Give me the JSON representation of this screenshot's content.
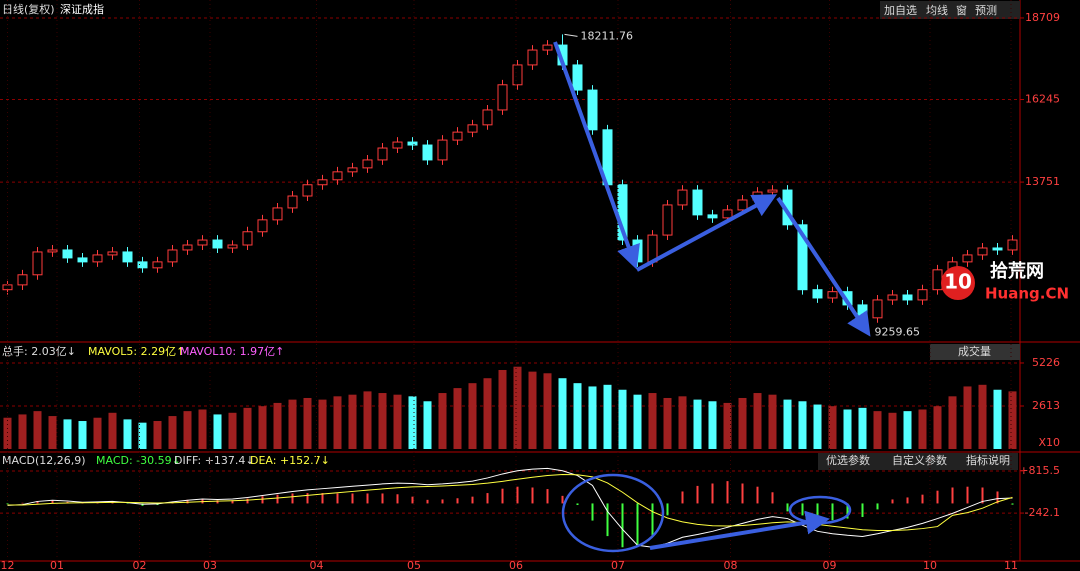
{
  "toolbar": [
    "加自选",
    "均线",
    "窗",
    "预测"
  ],
  "watermark": {
    "number": "10",
    "name": "拾荒网",
    "domain": "Huang.CN"
  },
  "chart_data": [
    {
      "type": "candlestick",
      "subtitle": "日线(复权)",
      "title": "深证成指",
      "up_color": "#ff3c3c",
      "down_color": "#54ffff",
      "open": [
        10500,
        10645,
        10950,
        11640,
        11700,
        11460,
        11340,
        11550,
        11640,
        11340,
        11160,
        11340,
        11700,
        11850,
        12000,
        11760,
        11850,
        12250,
        12610,
        12970,
        13330,
        13670,
        13820,
        14060,
        14180,
        14420,
        14780,
        14960,
        14870,
        14420,
        15020,
        15260,
        15480,
        15930,
        16690,
        17290,
        17740,
        17890,
        17290,
        16530,
        15330,
        13670,
        12000,
        11340,
        12150,
        13060,
        13510,
        12760,
        12670,
        12910,
        13210,
        13450,
        13510,
        12460,
        10500,
        10250,
        10440,
        10040,
        9650,
        10190,
        10340,
        10190,
        10500,
        11100,
        11340,
        11550,
        11760,
        11700
      ],
      "high": [
        10800,
        11100,
        11790,
        11850,
        11850,
        11610,
        11700,
        11790,
        11790,
        11490,
        11490,
        11850,
        12000,
        12150,
        12150,
        11990,
        12400,
        12760,
        13120,
        13480,
        13820,
        13970,
        14210,
        14330,
        14570,
        14930,
        15110,
        15110,
        15020,
        15170,
        15410,
        15630,
        16080,
        16840,
        17440,
        17890,
        18040,
        18211.76,
        17440,
        16680,
        15480,
        13820,
        12150,
        12300,
        13210,
        13660,
        13660,
        12910,
        13060,
        13360,
        13600,
        13660,
        13660,
        12610,
        10650,
        10590,
        10590,
        10190,
        10340,
        10490,
        10490,
        10650,
        11250,
        11490,
        11700,
        11910,
        11910,
        12150
      ],
      "low": [
        10350,
        10490,
        10800,
        11490,
        11310,
        11190,
        11190,
        11400,
        11190,
        11010,
        11010,
        11190,
        11550,
        11700,
        11610,
        11610,
        11700,
        12100,
        12460,
        12820,
        13180,
        13520,
        13670,
        13910,
        14030,
        14270,
        14630,
        14720,
        14270,
        14270,
        14870,
        15110,
        15330,
        15780,
        16540,
        17140,
        17590,
        17140,
        16380,
        15180,
        13520,
        11850,
        11190,
        11190,
        12000,
        12910,
        12610,
        12520,
        12520,
        12760,
        13060,
        13300,
        12310,
        10350,
        10100,
        10100,
        9890,
        9259.65,
        9500,
        10040,
        10040,
        10040,
        10350,
        10950,
        11190,
        11400,
        11550,
        11550
      ],
      "close": [
        10645,
        10950,
        11640,
        11700,
        11460,
        11340,
        11550,
        11640,
        11340,
        11160,
        11340,
        11700,
        11850,
        12000,
        11760,
        11850,
        12250,
        12610,
        12970,
        13330,
        13670,
        13820,
        14060,
        14180,
        14420,
        14780,
        14960,
        14870,
        14420,
        15020,
        15260,
        15480,
        15930,
        16690,
        17290,
        17740,
        17890,
        17290,
        16530,
        15330,
        13670,
        12000,
        11340,
        12150,
        13060,
        13510,
        12760,
        12670,
        12910,
        13210,
        13450,
        13510,
        12460,
        10500,
        10250,
        10440,
        10040,
        9650,
        10190,
        10340,
        10190,
        10500,
        11100,
        11340,
        11550,
        11760,
        11700,
        12000
      ],
      "xlim": [
        -0.5,
        67.5
      ],
      "ylim": [
        8980,
        19010
      ],
      "yticks": [
        18709,
        16245,
        13751
      ],
      "grid": true
    },
    {
      "type": "bar",
      "title": "成交量",
      "stats": [
        "总手: 2.03亿↓",
        "MAVOL5: 2.29亿↑",
        "MAVOL10: 1.97亿↑"
      ],
      "unit": "X10",
      "values": [
        1900,
        2100,
        2300,
        2000,
        1800,
        1700,
        1900,
        2200,
        1800,
        1600,
        1700,
        2000,
        2300,
        2400,
        2100,
        2200,
        2500,
        2600,
        2800,
        3000,
        3100,
        3000,
        3200,
        3300,
        3500,
        3400,
        3300,
        3200,
        2900,
        3400,
        3700,
        4000,
        4300,
        4800,
        5000,
        4700,
        4600,
        4300,
        4000,
        3800,
        3900,
        3600,
        3300,
        3400,
        3100,
        3200,
        3000,
        2900,
        2800,
        3100,
        3400,
        3300,
        3000,
        2900,
        2700,
        2600,
        2400,
        2500,
        2300,
        2200,
        2300,
        2400,
        2600,
        3200,
        3800,
        3900,
        3600,
        3500
      ],
      "xlim": [
        -0.5,
        67.5
      ],
      "ylim": [
        0,
        5650
      ],
      "yticks": [
        5226,
        2613
      ],
      "grid": true
    },
    {
      "type": "macd",
      "title": "MACD(12,26,9)",
      "stats": [
        "MACD: -30.59↓",
        "DIFF: +137.4↓",
        "DEA: +152.7↓"
      ],
      "buttons": [
        "优选参数",
        "自定义参数",
        "指标说明"
      ],
      "series": [
        {
          "name": "MACD",
          "color": "#ff4040",
          "color_negative": "#40ff40",
          "values": [
            -20,
            15,
            60,
            70,
            40,
            20,
            30,
            40,
            -10,
            -60,
            -40,
            40,
            90,
            110,
            80,
            80,
            120,
            180,
            220,
            250,
            260,
            260,
            250,
            250,
            250,
            250,
            230,
            170,
            90,
            100,
            130,
            170,
            260,
            370,
            420,
            400,
            360,
            190,
            -40,
            -430,
            -820,
            -1100,
            -1060,
            -800,
            -300,
            300,
            440,
            500,
            560,
            500,
            420,
            280,
            -200,
            -300,
            -400,
            -420,
            -380,
            -340,
            -150,
            100,
            150,
            220,
            320,
            400,
            420,
            400,
            300,
            -30.59
          ]
        },
        {
          "name": "DIFF",
          "color": "#ffffff",
          "values": [
            -50,
            -30,
            50,
            80,
            60,
            30,
            40,
            50,
            20,
            -20,
            -10,
            40,
            80,
            110,
            100,
            110,
            150,
            200,
            250,
            300,
            340,
            370,
            400,
            430,
            460,
            490,
            510,
            500,
            470,
            490,
            520,
            560,
            640,
            740,
            820,
            860,
            880,
            820,
            700,
            450,
            -200,
            -650,
            -1050,
            -1100,
            -1000,
            -850,
            -780,
            -700,
            -600,
            -500,
            -400,
            -330,
            -380,
            -550,
            -700,
            -760,
            -800,
            -830,
            -760,
            -680,
            -600,
            -500,
            -380,
            -250,
            -100,
            50,
            120,
            137.4
          ]
        },
        {
          "name": "DEA",
          "color": "#ffff40",
          "values": [
            -40,
            -38,
            -20,
            0,
            12,
            16,
            20,
            26,
            25,
            16,
            11,
            17,
            30,
            46,
            57,
            68,
            84,
            107,
            136,
            169,
            203,
            237,
            269,
            301,
            333,
            364,
            393,
            415,
            426,
            439,
            455,
            476,
            509,
            555,
            608,
            658,
            702,
            726,
            721,
            667,
            514,
            281,
            15,
            -208,
            -366,
            -463,
            -526,
            -561,
            -568,
            -555,
            -524,
            -485,
            -464,
            -481,
            -525,
            -572,
            -617,
            -660,
            -680,
            -680,
            -664,
            -631,
            -581,
            -300,
            -230,
            -120,
            40,
            152.7
          ]
        }
      ],
      "xlim": [
        -0.5,
        67.5
      ],
      "ylim": [
        -1370,
        1040
      ],
      "yticks": [
        {
          "value": 815.5,
          "label": "+815.5"
        },
        -242.1
      ],
      "xticks": [
        {
          "value": 0,
          "label": "12"
        },
        {
          "value": 3.3,
          "label": "01"
        },
        {
          "value": 8.8,
          "label": "02"
        },
        {
          "value": 13.5,
          "label": "03"
        },
        {
          "value": 20.6,
          "label": "04"
        },
        {
          "value": 27.1,
          "label": "05"
        },
        {
          "value": 33.9,
          "label": "06"
        },
        {
          "value": 40.7,
          "label": "07"
        },
        {
          "value": 48.2,
          "label": "08"
        },
        {
          "value": 54.8,
          "label": "09"
        },
        {
          "value": 61.5,
          "label": "10"
        },
        {
          "value": 66.9,
          "label": "11"
        }
      ]
    }
  ]
}
